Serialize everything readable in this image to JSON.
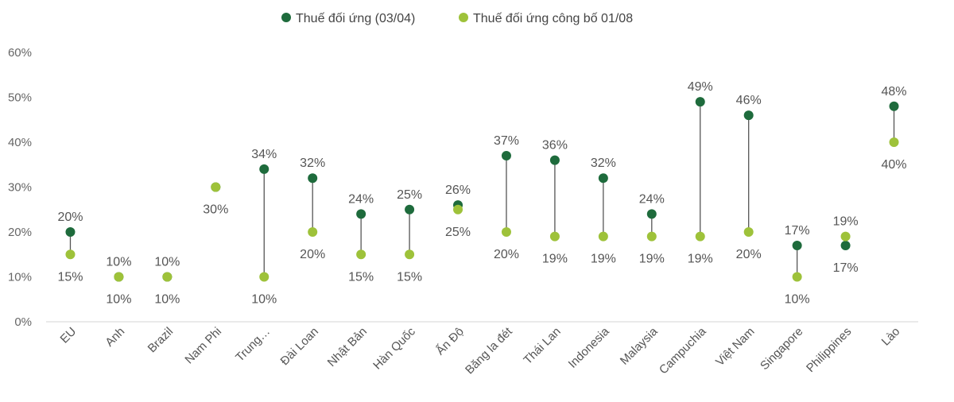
{
  "chart_data": {
    "type": "dumbbell",
    "title": "",
    "xlabel": "",
    "ylabel": "",
    "ylim": [
      0,
      60
    ],
    "yticks": [
      "0%",
      "10%",
      "20%",
      "30%",
      "40%",
      "50%",
      "60%"
    ],
    "grid": false,
    "legend_position": "top-center",
    "categories": [
      "EU",
      "Anh",
      "Brazil",
      "Nam Phi",
      "Trung…",
      "Đài Loan",
      "Nhật Bản",
      "Hàn Quốc",
      "Ấn Độ",
      "Băng la đét",
      "Thái Lan",
      "Indonesia",
      "Malaysia",
      "Campuchia",
      "Việt Nam",
      "Singapore",
      "Philippines",
      "Lào"
    ],
    "series": [
      {
        "name": "Thuế đối ứng (03/04)",
        "color": "#1e6b3c",
        "values": [
          20,
          10,
          10,
          30,
          34,
          32,
          24,
          25,
          26,
          37,
          36,
          32,
          24,
          49,
          46,
          17,
          17,
          48
        ],
        "labels": [
          "20%",
          "10%",
          "10%",
          "",
          "34%",
          "32%",
          "24%",
          "25%",
          "26%",
          "37%",
          "36%",
          "32%",
          "24%",
          "49%",
          "46%",
          "17%",
          "17%",
          "48%"
        ]
      },
      {
        "name": "Thuế đối ứng công bố 01/08",
        "color": "#9ec23a",
        "values": [
          15,
          10,
          10,
          30,
          10,
          20,
          15,
          15,
          25,
          20,
          19,
          19,
          19,
          19,
          20,
          10,
          19,
          40
        ],
        "labels": [
          "15%",
          "10%",
          "10%",
          "30%",
          "10%",
          "20%",
          "15%",
          "15%",
          "25%",
          "20%",
          "19%",
          "19%",
          "19%",
          "19%",
          "20%",
          "10%",
          "19%",
          "40%"
        ]
      }
    ]
  }
}
